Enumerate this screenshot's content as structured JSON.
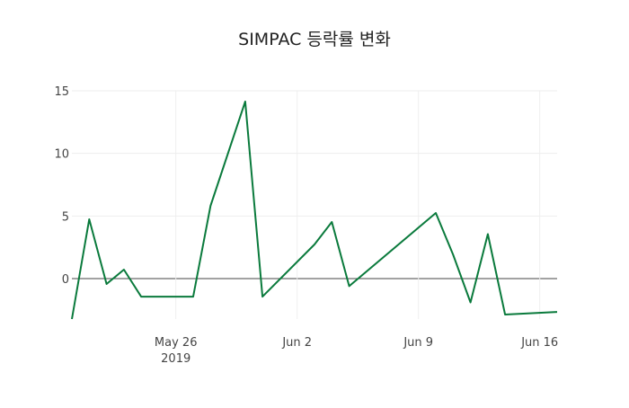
{
  "chart_data": {
    "type": "line",
    "title": "SIMPAC 등락률 변화",
    "xlabel": "",
    "ylabel": "",
    "x": [
      "2019-05-20",
      "2019-05-21",
      "2019-05-22",
      "2019-05-23",
      "2019-05-24",
      "2019-05-27",
      "2019-05-28",
      "2019-05-30",
      "2019-05-31",
      "2019-06-03",
      "2019-06-04",
      "2019-06-05",
      "2019-06-10",
      "2019-06-11",
      "2019-06-12",
      "2019-06-13",
      "2019-06-14",
      "2019-06-17"
    ],
    "series": [
      {
        "name": "등락률",
        "color": "#0a7a3c",
        "values": [
          -3.23,
          4.74,
          -0.43,
          0.72,
          -1.44,
          -1.44,
          5.81,
          14.14,
          -1.44,
          2.73,
          4.52,
          -0.6,
          5.24,
          1.9,
          -1.9,
          3.55,
          -2.87,
          -2.66
        ]
      }
    ],
    "xlim": [
      "2019-05-20",
      "2019-06-17"
    ],
    "ylim": [
      -3.23,
      15
    ],
    "yticks": [
      0,
      5,
      10,
      15
    ],
    "ytick_labels": [
      "0",
      "5",
      "10",
      "15"
    ],
    "xticks": [
      "2019-05-26",
      "2019-06-02",
      "2019-06-09",
      "2019-06-16"
    ],
    "xtick_labels": [
      "May 26",
      "Jun 2",
      "Jun 9",
      "Jun 16"
    ],
    "xtick_sublabel": "2019",
    "grid": true,
    "legend": "none"
  }
}
